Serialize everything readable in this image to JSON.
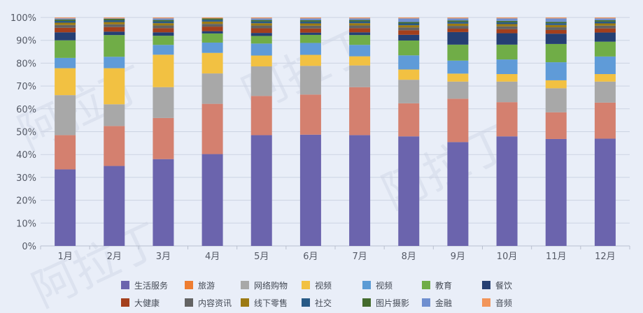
{
  "chart_data": {
    "type": "bar",
    "stacked": true,
    "percent": true,
    "title": "",
    "xlabel": "",
    "ylabel": "",
    "ylim": [
      0,
      100
    ],
    "y_ticks": [
      0,
      10,
      20,
      30,
      40,
      50,
      60,
      70,
      80,
      90,
      100
    ],
    "y_tick_suffix": "%",
    "categories": [
      "1月",
      "2月",
      "3月",
      "4月",
      "5月",
      "6月",
      "7月",
      "8月",
      "9月",
      "10月",
      "11月",
      "12月"
    ],
    "legend_position": "bottom",
    "series": [
      {
        "name": "生活服务",
        "color": "#6b64ad",
        "values": [
          33.5,
          35,
          38,
          40.2,
          48,
          48.5,
          48.5,
          48,
          45.5,
          48,
          46.8,
          47
        ]
      },
      {
        "name": "旅游",
        "color": "#d4806f",
        "values": [
          15,
          17.5,
          18,
          22,
          17,
          17.5,
          21,
          14.5,
          19,
          15,
          11.7,
          15.8
        ]
      },
      {
        "name": "网络购物",
        "color": "#a8a8a8",
        "values": [
          17.5,
          9.5,
          13.5,
          13.3,
          12.8,
          12.5,
          9.5,
          10.3,
          7.5,
          9,
          10.5,
          9.2
        ]
      },
      {
        "name": "视频",
        "color": "#f2c142",
        "values": [
          11.8,
          15.8,
          14.2,
          9,
          4.7,
          4.8,
          4,
          4.5,
          3.5,
          3.3,
          3.5,
          3.3
        ]
      },
      {
        "name": "视频",
        "color": "#5f9bd8",
        "values": [
          4.5,
          5,
          4.3,
          4.5,
          5.2,
          5.2,
          5,
          6.2,
          5.7,
          6.4,
          7.9,
          7.7
        ]
      },
      {
        "name": "教育",
        "color": "#70ad47",
        "values": [
          7.7,
          9.5,
          4,
          4,
          3.3,
          3.5,
          4.3,
          6.5,
          7,
          6.5,
          8,
          6.5
        ]
      },
      {
        "name": "餐饮",
        "color": "#253f73",
        "values": [
          3.5,
          1.5,
          1.5,
          1,
          1.3,
          1,
          1.2,
          2.5,
          5.5,
          5,
          4.5,
          4
        ]
      },
      {
        "name": "大健康",
        "color": "#a33f1c",
        "values": [
          2,
          2,
          1.8,
          2,
          2,
          1.8,
          1.8,
          2,
          1.5,
          1.8,
          1.6,
          1.8
        ]
      },
      {
        "name": "内容资讯",
        "color": "#636363",
        "values": [
          1.2,
          1.2,
          1.2,
          1.2,
          1.2,
          1.2,
          1.2,
          1.2,
          1.2,
          1.2,
          1.2,
          1.2
        ]
      },
      {
        "name": "线下零售",
        "color": "#9c7a13",
        "values": [
          1,
          1,
          1,
          1,
          1,
          1,
          1,
          1,
          1,
          1,
          1,
          1
        ]
      },
      {
        "name": "社交",
        "color": "#285a86",
        "values": [
          0.8,
          0.8,
          0.8,
          0.8,
          0.8,
          0.8,
          0.8,
          0.8,
          0.8,
          0.8,
          0.8,
          0.8
        ]
      },
      {
        "name": "图片摄影",
        "color": "#436b2d",
        "values": [
          0.6,
          0.6,
          0.6,
          0.6,
          0.6,
          0.6,
          0.6,
          0.6,
          0.6,
          0.6,
          0.6,
          0.6
        ]
      },
      {
        "name": "金融",
        "color": "#6f8fd0",
        "values": [
          0.5,
          0.2,
          0.7,
          0.0,
          0.7,
          0.8,
          0.7,
          1.6,
          0.9,
          1.1,
          1.5,
          0.8
        ]
      },
      {
        "name": "音频",
        "color": "#f2955a",
        "values": [
          0.4,
          0.4,
          0.4,
          0.4,
          0.4,
          0.4,
          0.4,
          0.4,
          0.4,
          0.4,
          0.4,
          0.4
        ]
      }
    ],
    "legend_overrides": [
      {
        "index": 1,
        "color": "#ee7d31"
      },
      {
        "index": 4,
        "color": "#5b9bd5"
      }
    ]
  },
  "watermark_text": "阿拉丁"
}
